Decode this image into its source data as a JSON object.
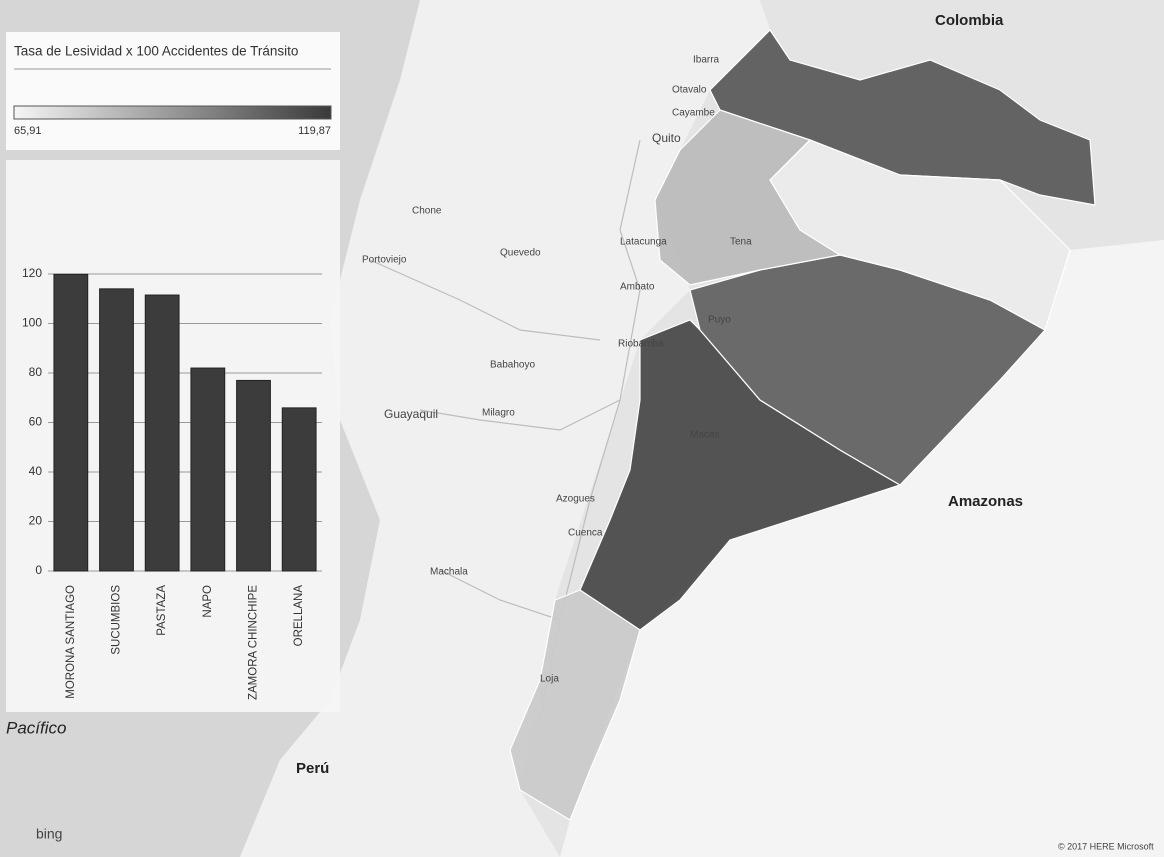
{
  "legend": {
    "title": "Tasa de Lesividad x 100 Accidentes de Tránsito",
    "min": {
      "value": 65.91,
      "label": "65,91"
    },
    "max": {
      "value": 119.87,
      "label": "119,87"
    }
  },
  "chart_data": {
    "type": "bar",
    "categories": [
      "MORONA SANTIAGO",
      "SUCUMBIOS",
      "PASTAZA",
      "NAPO",
      "ZAMORA CHINCHIPE",
      "ORELLANA"
    ],
    "values": [
      119.87,
      114,
      111.5,
      82,
      77,
      65.91
    ],
    "color": "#3c3c3c",
    "ylim": [
      0,
      120
    ],
    "yticks": [
      0,
      20,
      40,
      60,
      80,
      100,
      120
    ],
    "grid": true
  },
  "map_labels": [
    "Colombia",
    "Amazonas",
    "Perú",
    "Pacífico",
    "Quito",
    "Guayaquil",
    "Cuenca",
    "Ambato",
    "Machala",
    "Loja",
    "Tena",
    "Puyo",
    "Macas",
    "Latacunga",
    "Riobamba",
    "Ibarra",
    "Otavalo",
    "Cayambe",
    "Quevedo",
    "Portoviejo",
    "Babahoyo",
    "Milagro",
    "Azogues",
    "Chone",
    "bing",
    "© 2017 HERE  Microsoft"
  ]
}
